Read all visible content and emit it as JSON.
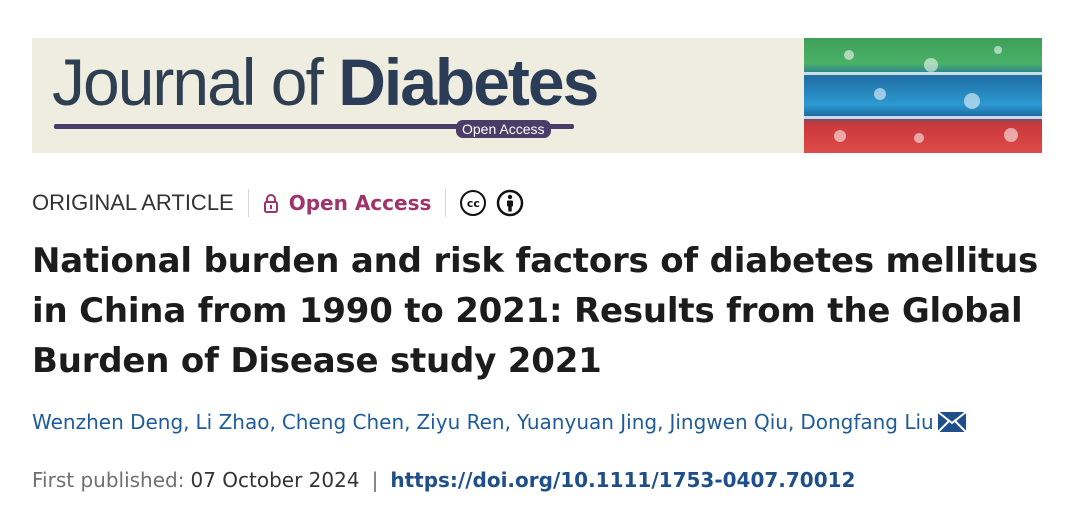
{
  "banner": {
    "journal_light": "Journal of",
    "journal_bold": "Diabetes",
    "open_access_pill": "Open Access"
  },
  "meta": {
    "article_type": "ORIGINAL ARTICLE",
    "open_access": "Open Access",
    "icons": [
      "lock-icon",
      "creative-commons-icon",
      "attribution-icon"
    ]
  },
  "article": {
    "title": "National burden and risk factors of diabetes mellitus in China from 1990 to 2021: Results from the Global Burden of Disease study 2021",
    "authors": [
      "Wenzhen Deng",
      "Li Zhao",
      "Cheng Chen",
      "Ziyu Ren",
      "Yuanyuan Jing",
      "Jingwen Qiu",
      "Dongfang Liu"
    ]
  },
  "publication": {
    "first_published_label": "First published:",
    "date": "07 October 2024",
    "separator": "|",
    "doi": "https://doi.org/10.1111/1753-0407.70012"
  },
  "colors": {
    "open_access": "#a1336b",
    "author_link": "#1f5c99",
    "doi_link": "#1f4f8a",
    "banner_bg": "#efece0"
  }
}
